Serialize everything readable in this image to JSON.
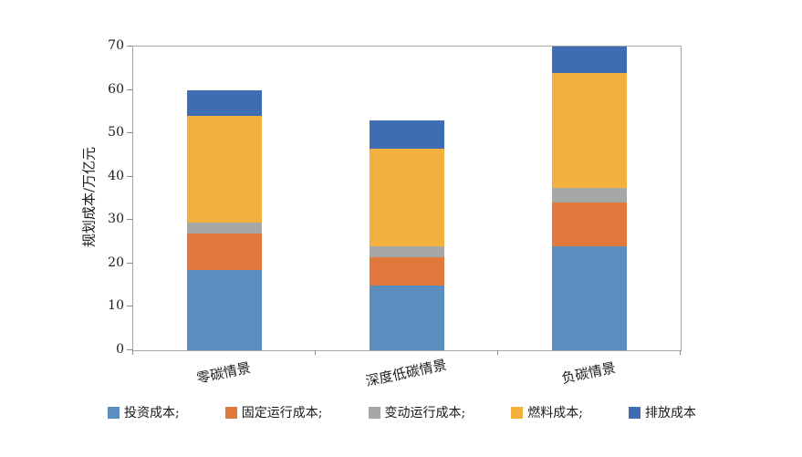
{
  "chart_data": {
    "type": "bar",
    "stacked": true,
    "title": "",
    "xlabel": "",
    "ylabel": "规划成本/万亿元",
    "ylim": [
      0,
      70
    ],
    "yticks": [
      0,
      10,
      20,
      30,
      40,
      50,
      60,
      70
    ],
    "grid": false,
    "legend_position": "bottom",
    "categories": [
      "零碳情景",
      "深度低碳情景",
      "负碳情景"
    ],
    "series": [
      {
        "name": "投资成本;",
        "color": "#5b8dbf",
        "values": [
          18.5,
          15,
          24
        ]
      },
      {
        "name": "固定运行成本;",
        "color": "#e1793c",
        "values": [
          8.5,
          6.5,
          10
        ]
      },
      {
        "name": "变动运行成本;",
        "color": "#a7a7a7",
        "values": [
          2.5,
          2.5,
          3.5
        ]
      },
      {
        "name": "燃料成本;",
        "color": "#f2b13c",
        "values": [
          24.5,
          22.5,
          26.5
        ]
      },
      {
        "name": "排放成本",
        "color": "#3f6db4",
        "values": [
          6,
          6.5,
          6
        ]
      }
    ]
  }
}
